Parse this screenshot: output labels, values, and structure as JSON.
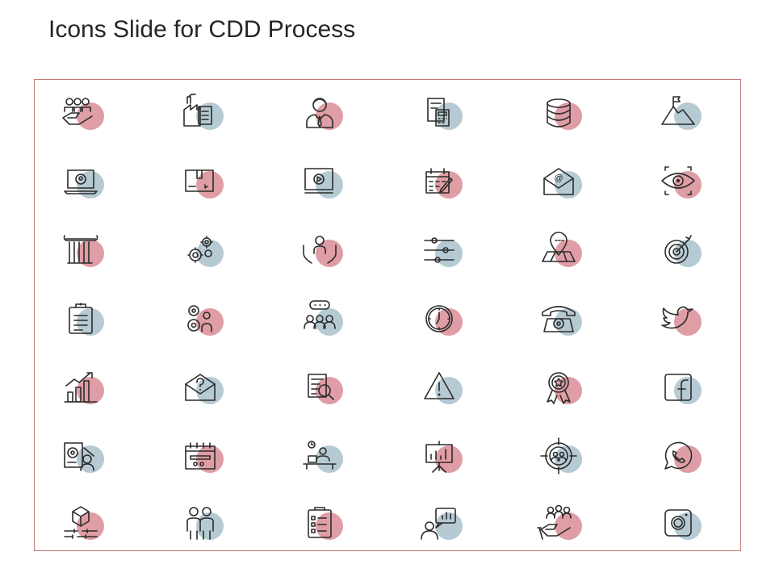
{
  "slide": {
    "title": "Icons Slide for CDD Process",
    "colors": {
      "accent_red": "#d98c95",
      "accent_blue": "#a9c1cb",
      "frame": "#c07a7a",
      "stroke": "#2b2b2b"
    }
  },
  "icons": [
    {
      "name": "team-hand-icon",
      "accent": "red"
    },
    {
      "name": "factory-document-icon",
      "accent": "blue"
    },
    {
      "name": "businessman-icon",
      "accent": "red"
    },
    {
      "name": "calculator-document-icon",
      "accent": "blue"
    },
    {
      "name": "database-icon",
      "accent": "red"
    },
    {
      "name": "mountain-flag-icon",
      "accent": "blue"
    },
    {
      "name": "laptop-user-icon",
      "accent": "blue"
    },
    {
      "name": "box-package-icon",
      "accent": "red"
    },
    {
      "name": "video-player-icon",
      "accent": "blue"
    },
    {
      "name": "calendar-pencil-icon",
      "accent": "red"
    },
    {
      "name": "email-envelope-icon",
      "accent": "blue"
    },
    {
      "name": "eye-focus-icon",
      "accent": "red"
    },
    {
      "name": "pillar-icon",
      "accent": "red"
    },
    {
      "name": "gears-icon",
      "accent": "blue"
    },
    {
      "name": "hands-person-icon",
      "accent": "red"
    },
    {
      "name": "sliders-icon",
      "accent": "blue"
    },
    {
      "name": "location-map-icon",
      "accent": "red"
    },
    {
      "name": "target-arrow-icon",
      "accent": "blue"
    },
    {
      "name": "clipboard-icon",
      "accent": "blue"
    },
    {
      "name": "gears-person-icon",
      "accent": "red"
    },
    {
      "name": "team-chat-icon",
      "accent": "blue"
    },
    {
      "name": "clock-icon",
      "accent": "red"
    },
    {
      "name": "telephone-icon",
      "accent": "blue"
    },
    {
      "name": "twitter-bird-icon",
      "accent": "red"
    },
    {
      "name": "growth-chart-icon",
      "accent": "red"
    },
    {
      "name": "question-envelope-icon",
      "accent": "blue"
    },
    {
      "name": "document-search-icon",
      "accent": "red"
    },
    {
      "name": "warning-triangle-icon",
      "accent": "blue"
    },
    {
      "name": "award-badge-icon",
      "accent": "red"
    },
    {
      "name": "facebook-icon",
      "accent": "blue"
    },
    {
      "name": "settings-document-person-icon",
      "accent": "blue"
    },
    {
      "name": "calendar-card-icon",
      "accent": "red"
    },
    {
      "name": "person-desk-icon",
      "accent": "blue"
    },
    {
      "name": "presentation-board-icon",
      "accent": "red"
    },
    {
      "name": "target-team-icon",
      "accent": "blue"
    },
    {
      "name": "whatsapp-phone-icon",
      "accent": "red"
    },
    {
      "name": "cube-sliders-icon",
      "accent": "red"
    },
    {
      "name": "partners-icon",
      "accent": "blue"
    },
    {
      "name": "checklist-icon",
      "accent": "red"
    },
    {
      "name": "person-chart-bubble-icon",
      "accent": "blue"
    },
    {
      "name": "team-hand-coin-icon",
      "accent": "red"
    },
    {
      "name": "instagram-camera-icon",
      "accent": "blue"
    }
  ]
}
